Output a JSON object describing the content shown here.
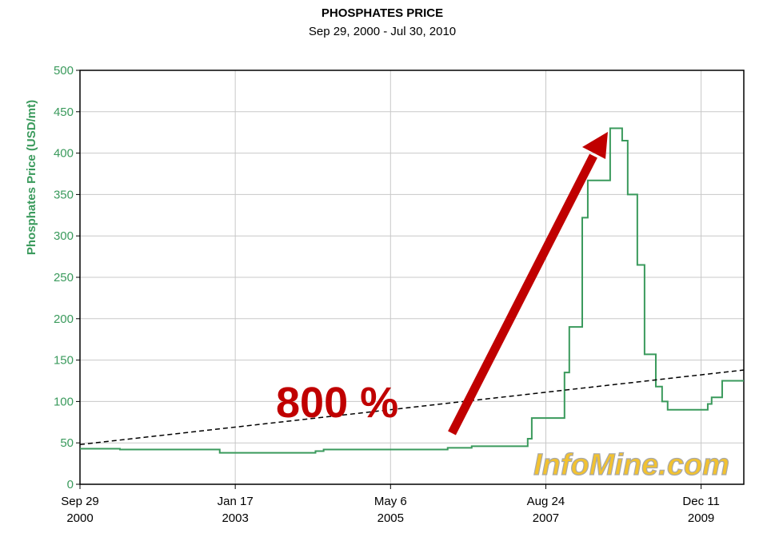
{
  "chart_data": {
    "type": "line",
    "title": "PHOSPHATES PRICE",
    "subtitle": "Sep 29, 2000 - Jul 30, 2010",
    "y_label": "Phosphates Price (USD/mt)",
    "annotation": "800 %",
    "watermark": "InfoMine.com",
    "step": "post",
    "grid": true,
    "x": [
      "2000-09-29",
      "2001-05-03",
      "2002-10-25",
      "2004-02-12",
      "2004-03-26",
      "2004-05-09",
      "2006-03-11",
      "2006-07-19",
      "2007-04-27",
      "2007-05-18",
      "2007-06-09",
      "2007-12-03",
      "2007-12-29",
      "2008-03-08",
      "2008-04-07",
      "2008-08-06",
      "2008-10-10",
      "2008-11-09",
      "2008-12-31",
      "2009-02-08",
      "2009-04-10",
      "2009-05-14",
      "2009-06-13",
      "2010-01-16",
      "2010-02-06",
      "2010-04-04",
      "2010-07-30"
    ],
    "series": [
      {
        "name": "Phosphates Price",
        "color": "#3a9a5c",
        "values": [
          43,
          42,
          38,
          38,
          40,
          42,
          44,
          46,
          46,
          55,
          80,
          135,
          190,
          322,
          367,
          430,
          415,
          350,
          265,
          157,
          118,
          100,
          90,
          97,
          105,
          125,
          125
        ]
      }
    ],
    "trendline": {
      "x": [
        "2000-09-29",
        "2010-07-30"
      ],
      "values": [
        48,
        138
      ],
      "color": "#000000"
    },
    "xlim": [
      "2000-09-29",
      "2010-07-30"
    ],
    "xticks": [
      {
        "value": "2000-09-29",
        "label": [
          "Sep 29",
          "2000"
        ]
      },
      {
        "value": "2003-01-17",
        "label": [
          "Jan 17",
          "2003"
        ]
      },
      {
        "value": "2005-05-06",
        "label": [
          "May 6",
          "2005"
        ]
      },
      {
        "value": "2007-08-24",
        "label": [
          "Aug 24",
          "2007"
        ]
      },
      {
        "value": "2009-12-11",
        "label": [
          "Dec 11",
          "2009"
        ]
      }
    ],
    "ylim": [
      0,
      500
    ],
    "yticks": [
      0,
      50,
      100,
      150,
      200,
      250,
      300,
      350,
      400,
      450,
      500
    ]
  }
}
